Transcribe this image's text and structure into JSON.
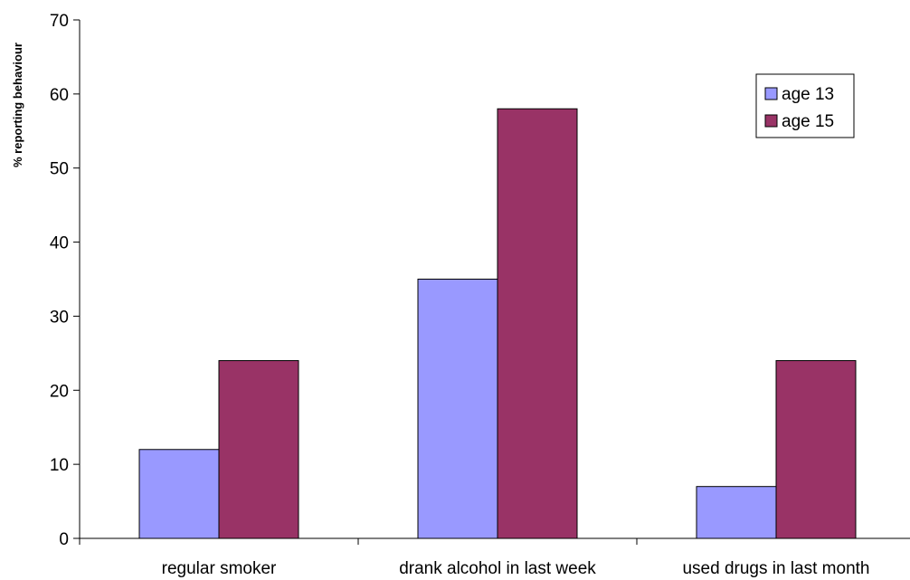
{
  "chart_data": {
    "type": "bar",
    "title": "",
    "xlabel": "",
    "ylabel": "% reporting behaviour",
    "ylim": [
      0,
      70
    ],
    "yticks": [
      0,
      10,
      20,
      30,
      40,
      50,
      60,
      70
    ],
    "grid": false,
    "legend_position": "top-right",
    "categories": [
      "regular smoker",
      "drank alcohol in last week",
      "used drugs in last month"
    ],
    "series": [
      {
        "name": "age 13",
        "color": "#9999ff",
        "values": [
          12,
          35,
          7
        ]
      },
      {
        "name": "age 15",
        "color": "#993366",
        "values": [
          24,
          58,
          24
        ]
      }
    ]
  }
}
